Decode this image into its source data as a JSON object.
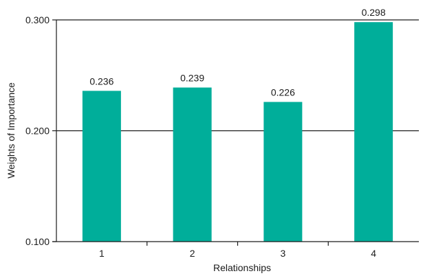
{
  "chart_data": {
    "type": "bar",
    "title": "",
    "xlabel": "Relationships",
    "ylabel": "Weights of Importance",
    "categories": [
      "1",
      "2",
      "3",
      "4"
    ],
    "values": [
      0.236,
      0.239,
      0.226,
      0.298
    ],
    "value_labels": [
      "0.236",
      "0.239",
      "0.226",
      "0.298"
    ],
    "ylim": [
      0.1,
      0.3
    ],
    "yticks": [
      0.1,
      0.2,
      0.3
    ],
    "ytick_labels": [
      "0.100",
      "0.200",
      "0.300"
    ],
    "grid": "horizontal",
    "legend": "none",
    "bar_color": "#00ae9a",
    "axis_color": "#1a1a1a"
  }
}
